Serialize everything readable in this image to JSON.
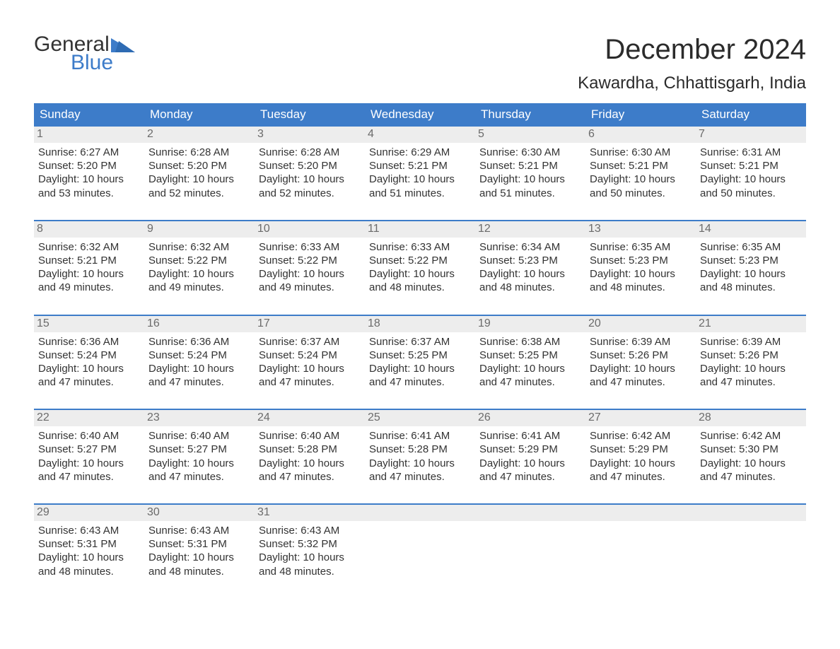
{
  "brand": {
    "word1": "General",
    "word2": "Blue",
    "tri_color": "#3d7cc9",
    "text_dark": "#333333"
  },
  "title": "December 2024",
  "location": "Kawardha, Chhattisgarh, India",
  "colors": {
    "header_bg": "#3d7cc9",
    "header_text": "#ffffff",
    "daynum_bg": "#ededed",
    "daynum_text": "#6b6b6b",
    "body_text": "#333333",
    "week_border": "#3d7cc9",
    "page_bg": "#ffffff"
  },
  "layout": {
    "columns": 7,
    "rows": 5,
    "cell_font_size": 15,
    "weekday_font_size": 17,
    "title_font_size": 40,
    "location_font_size": 24
  },
  "weekdays": [
    "Sunday",
    "Monday",
    "Tuesday",
    "Wednesday",
    "Thursday",
    "Friday",
    "Saturday"
  ],
  "weeks": [
    [
      {
        "n": "1",
        "sunrise": "Sunrise: 6:27 AM",
        "sunset": "Sunset: 5:20 PM",
        "d1": "Daylight: 10 hours",
        "d2": "and 53 minutes."
      },
      {
        "n": "2",
        "sunrise": "Sunrise: 6:28 AM",
        "sunset": "Sunset: 5:20 PM",
        "d1": "Daylight: 10 hours",
        "d2": "and 52 minutes."
      },
      {
        "n": "3",
        "sunrise": "Sunrise: 6:28 AM",
        "sunset": "Sunset: 5:20 PM",
        "d1": "Daylight: 10 hours",
        "d2": "and 52 minutes."
      },
      {
        "n": "4",
        "sunrise": "Sunrise: 6:29 AM",
        "sunset": "Sunset: 5:21 PM",
        "d1": "Daylight: 10 hours",
        "d2": "and 51 minutes."
      },
      {
        "n": "5",
        "sunrise": "Sunrise: 6:30 AM",
        "sunset": "Sunset: 5:21 PM",
        "d1": "Daylight: 10 hours",
        "d2": "and 51 minutes."
      },
      {
        "n": "6",
        "sunrise": "Sunrise: 6:30 AM",
        "sunset": "Sunset: 5:21 PM",
        "d1": "Daylight: 10 hours",
        "d2": "and 50 minutes."
      },
      {
        "n": "7",
        "sunrise": "Sunrise: 6:31 AM",
        "sunset": "Sunset: 5:21 PM",
        "d1": "Daylight: 10 hours",
        "d2": "and 50 minutes."
      }
    ],
    [
      {
        "n": "8",
        "sunrise": "Sunrise: 6:32 AM",
        "sunset": "Sunset: 5:21 PM",
        "d1": "Daylight: 10 hours",
        "d2": "and 49 minutes."
      },
      {
        "n": "9",
        "sunrise": "Sunrise: 6:32 AM",
        "sunset": "Sunset: 5:22 PM",
        "d1": "Daylight: 10 hours",
        "d2": "and 49 minutes."
      },
      {
        "n": "10",
        "sunrise": "Sunrise: 6:33 AM",
        "sunset": "Sunset: 5:22 PM",
        "d1": "Daylight: 10 hours",
        "d2": "and 49 minutes."
      },
      {
        "n": "11",
        "sunrise": "Sunrise: 6:33 AM",
        "sunset": "Sunset: 5:22 PM",
        "d1": "Daylight: 10 hours",
        "d2": "and 48 minutes."
      },
      {
        "n": "12",
        "sunrise": "Sunrise: 6:34 AM",
        "sunset": "Sunset: 5:23 PM",
        "d1": "Daylight: 10 hours",
        "d2": "and 48 minutes."
      },
      {
        "n": "13",
        "sunrise": "Sunrise: 6:35 AM",
        "sunset": "Sunset: 5:23 PM",
        "d1": "Daylight: 10 hours",
        "d2": "and 48 minutes."
      },
      {
        "n": "14",
        "sunrise": "Sunrise: 6:35 AM",
        "sunset": "Sunset: 5:23 PM",
        "d1": "Daylight: 10 hours",
        "d2": "and 48 minutes."
      }
    ],
    [
      {
        "n": "15",
        "sunrise": "Sunrise: 6:36 AM",
        "sunset": "Sunset: 5:24 PM",
        "d1": "Daylight: 10 hours",
        "d2": "and 47 minutes."
      },
      {
        "n": "16",
        "sunrise": "Sunrise: 6:36 AM",
        "sunset": "Sunset: 5:24 PM",
        "d1": "Daylight: 10 hours",
        "d2": "and 47 minutes."
      },
      {
        "n": "17",
        "sunrise": "Sunrise: 6:37 AM",
        "sunset": "Sunset: 5:24 PM",
        "d1": "Daylight: 10 hours",
        "d2": "and 47 minutes."
      },
      {
        "n": "18",
        "sunrise": "Sunrise: 6:37 AM",
        "sunset": "Sunset: 5:25 PM",
        "d1": "Daylight: 10 hours",
        "d2": "and 47 minutes."
      },
      {
        "n": "19",
        "sunrise": "Sunrise: 6:38 AM",
        "sunset": "Sunset: 5:25 PM",
        "d1": "Daylight: 10 hours",
        "d2": "and 47 minutes."
      },
      {
        "n": "20",
        "sunrise": "Sunrise: 6:39 AM",
        "sunset": "Sunset: 5:26 PM",
        "d1": "Daylight: 10 hours",
        "d2": "and 47 minutes."
      },
      {
        "n": "21",
        "sunrise": "Sunrise: 6:39 AM",
        "sunset": "Sunset: 5:26 PM",
        "d1": "Daylight: 10 hours",
        "d2": "and 47 minutes."
      }
    ],
    [
      {
        "n": "22",
        "sunrise": "Sunrise: 6:40 AM",
        "sunset": "Sunset: 5:27 PM",
        "d1": "Daylight: 10 hours",
        "d2": "and 47 minutes."
      },
      {
        "n": "23",
        "sunrise": "Sunrise: 6:40 AM",
        "sunset": "Sunset: 5:27 PM",
        "d1": "Daylight: 10 hours",
        "d2": "and 47 minutes."
      },
      {
        "n": "24",
        "sunrise": "Sunrise: 6:40 AM",
        "sunset": "Sunset: 5:28 PM",
        "d1": "Daylight: 10 hours",
        "d2": "and 47 minutes."
      },
      {
        "n": "25",
        "sunrise": "Sunrise: 6:41 AM",
        "sunset": "Sunset: 5:28 PM",
        "d1": "Daylight: 10 hours",
        "d2": "and 47 minutes."
      },
      {
        "n": "26",
        "sunrise": "Sunrise: 6:41 AM",
        "sunset": "Sunset: 5:29 PM",
        "d1": "Daylight: 10 hours",
        "d2": "and 47 minutes."
      },
      {
        "n": "27",
        "sunrise": "Sunrise: 6:42 AM",
        "sunset": "Sunset: 5:29 PM",
        "d1": "Daylight: 10 hours",
        "d2": "and 47 minutes."
      },
      {
        "n": "28",
        "sunrise": "Sunrise: 6:42 AM",
        "sunset": "Sunset: 5:30 PM",
        "d1": "Daylight: 10 hours",
        "d2": "and 47 minutes."
      }
    ],
    [
      {
        "n": "29",
        "sunrise": "Sunrise: 6:43 AM",
        "sunset": "Sunset: 5:31 PM",
        "d1": "Daylight: 10 hours",
        "d2": "and 48 minutes."
      },
      {
        "n": "30",
        "sunrise": "Sunrise: 6:43 AM",
        "sunset": "Sunset: 5:31 PM",
        "d1": "Daylight: 10 hours",
        "d2": "and 48 minutes."
      },
      {
        "n": "31",
        "sunrise": "Sunrise: 6:43 AM",
        "sunset": "Sunset: 5:32 PM",
        "d1": "Daylight: 10 hours",
        "d2": "and 48 minutes."
      },
      {
        "n": "",
        "sunrise": "",
        "sunset": "",
        "d1": "",
        "d2": "",
        "empty": true
      },
      {
        "n": "",
        "sunrise": "",
        "sunset": "",
        "d1": "",
        "d2": "",
        "empty": true
      },
      {
        "n": "",
        "sunrise": "",
        "sunset": "",
        "d1": "",
        "d2": "",
        "empty": true
      },
      {
        "n": "",
        "sunrise": "",
        "sunset": "",
        "d1": "",
        "d2": "",
        "empty": true
      }
    ]
  ]
}
